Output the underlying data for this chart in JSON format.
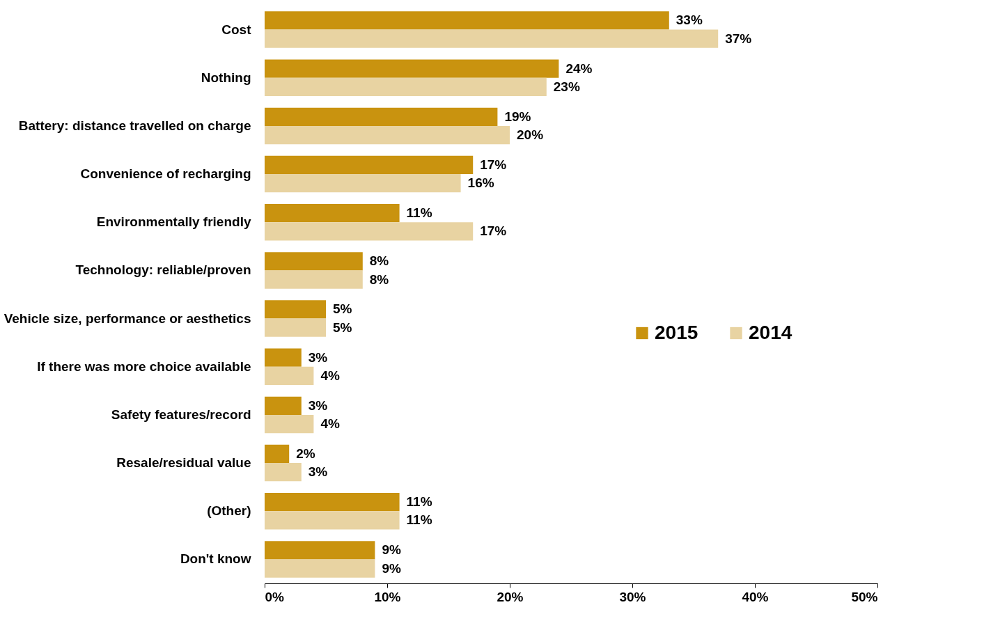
{
  "chart_data": {
    "type": "bar",
    "orientation": "horizontal",
    "categories": [
      "Cost",
      "Nothing",
      "Battery: distance travelled on charge",
      "Convenience of recharging",
      "Environmentally friendly",
      "Technology: reliable/proven",
      "Vehicle size, performance or aesthetics",
      "If there was more choice available",
      "Safety features/record",
      "Resale/residual value",
      "(Other)",
      "Don't know"
    ],
    "series": [
      {
        "name": "2015",
        "color": "#c9930f",
        "values": [
          33,
          24,
          19,
          17,
          11,
          8,
          5,
          3,
          3,
          2,
          11,
          9
        ],
        "value_labels": [
          "33%",
          "24%",
          "19%",
          "17%",
          "11%",
          "8%",
          "5%",
          "3%",
          "3%",
          "2%",
          "11%",
          "9%"
        ]
      },
      {
        "name": "2014",
        "color": "#e8d3a2",
        "values": [
          37,
          23,
          20,
          16,
          17,
          8,
          5,
          4,
          4,
          3,
          11,
          9
        ],
        "value_labels": [
          "37%",
          "23%",
          "20%",
          "16%",
          "17%",
          "8%",
          "5%",
          "4%",
          "4%",
          "3%",
          "11%",
          "9%"
        ]
      }
    ],
    "xlim": [
      0,
      50
    ],
    "xticks": [
      {
        "value": 0,
        "label": "0%"
      },
      {
        "value": 10,
        "label": "10%"
      },
      {
        "value": 20,
        "label": "20%"
      },
      {
        "value": 30,
        "label": "30%"
      },
      {
        "value": 40,
        "label": "40%"
      },
      {
        "value": 50,
        "label": "50%"
      }
    ],
    "grid": false,
    "legend": "right"
  }
}
